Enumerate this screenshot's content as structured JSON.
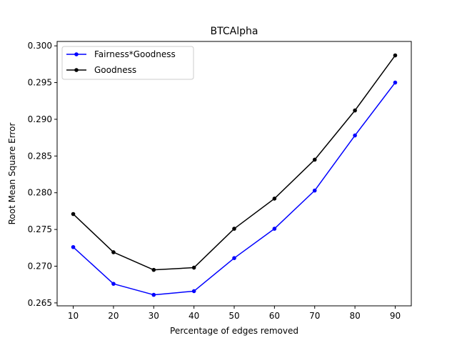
{
  "chart_data": {
    "type": "line",
    "title": "BTCAlpha",
    "xlabel": "Percentage of edges removed",
    "ylabel": "Root Mean Square Error",
    "x": [
      10,
      20,
      30,
      40,
      50,
      60,
      70,
      80,
      90
    ],
    "xlim": [
      6,
      94
    ],
    "ylim": [
      0.2646,
      0.3006
    ],
    "xticks": [
      10,
      20,
      30,
      40,
      50,
      60,
      70,
      80,
      90
    ],
    "xtick_labels": [
      "10",
      "20",
      "30",
      "40",
      "50",
      "60",
      "70",
      "80",
      "90"
    ],
    "yticks": [
      0.265,
      0.27,
      0.275,
      0.28,
      0.285,
      0.29,
      0.295,
      0.3
    ],
    "ytick_labels": [
      "0.265",
      "0.270",
      "0.275",
      "0.280",
      "0.285",
      "0.290",
      "0.295",
      "0.300"
    ],
    "grid": false,
    "legend_position": "top-left",
    "series": [
      {
        "name": "Fairness*Goodness",
        "color": "#0000ff",
        "marker": "circle",
        "values": [
          0.2726,
          0.2676,
          0.2661,
          0.2666,
          0.2711,
          0.2751,
          0.2803,
          0.2878,
          0.295
        ]
      },
      {
        "name": "Goodness",
        "color": "#000000",
        "marker": "circle",
        "values": [
          0.2771,
          0.2719,
          0.2695,
          0.2698,
          0.2751,
          0.2792,
          0.2845,
          0.2912,
          0.2987
        ]
      }
    ]
  }
}
